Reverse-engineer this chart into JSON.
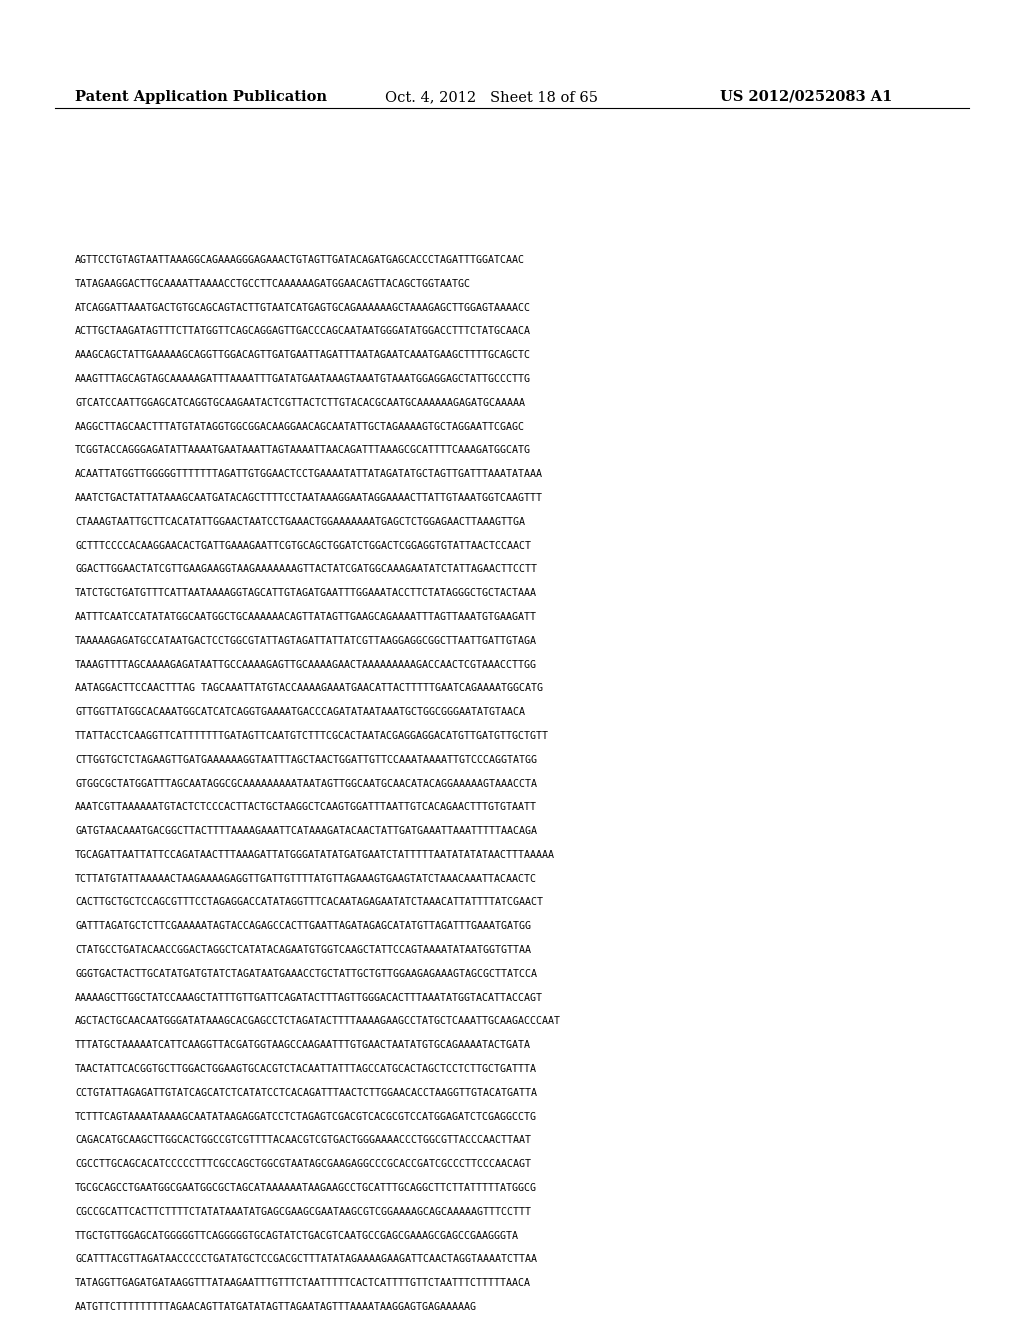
{
  "header_left": "Patent Application Publication",
  "header_mid": "Oct. 4, 2012   Sheet 18 of 65",
  "header_right": "US 2012/0252083 A1",
  "background_color": "#ffffff",
  "text_color": "#000000",
  "header_fontsize": 10.5,
  "body_fontsize": 7.2,
  "sequence_lines": [
    "AGTTCCTGTAGTAATTAAAGGCAGAAAGGGAGAAACTGTAGTTGATACAGATGAGCACCCTAGATTTGGATCAAC",
    "TATAGAAGGACTTGCAAAATTAAAACCTGCCTTCAAAAAAGATGGAACAGTTACAGCTGGTAATGC",
    "ATCAGGATTAAATGACTGTGCAGCAGTACTTGTAATCATGAGTGCAGAAAAAAGCTAAAGAGCTTGGAGTAAAACC",
    "ACTTGCTAAGATAGTTTCTTATGGTTCAGCAGGAGTTGACCCAGCAATAATGGGATATGGACCTTTCTATGCAACA",
    "AAAGCAGCTATTGAAAAAGCAGGTTGGACAGTTGATGAATTAGATTTAATAGAATCAAATGAAGCTTTTGCAGCTC",
    "AAAGTTTAGCAGTAGCAAAAAGATTTAAAATTTGATATGAATAAAGTAAATGTAAATGGAGGAGCTATTGCCCTTG",
    "GTCATCCAATTGGAGCATCAGGTGCAAGAATACTCGTTACTCTTGTACACGCAATGCAAAAAAGAGATGCAAAAA",
    "AAGGCTTAGCAACTTTATGTATAGGTGGCGGACAAGGAACAGCAATATTGCTAGAAAAGTGCTAGGAATTCGAGC",
    "TCGGTACCAGGGAGATATTAAAATGAATAAATTAGTAAAATTAACAGATTTAAAGCGCATTTTCAAAGATGGCATG",
    "ACAATTATGGTTGGGGGTTTTTTTAGATTGTGGAACTCCTGAAAATATTATAGATATGCTAGTTGATTTAAATATAAA",
    "AAATCTGACTATTATAAAGCAATGATACAGCTTTTCCTAATAAAGGAATAGGAAAACTTATTGTAAATGGTCAAGTTT",
    "CTAAAGTAATTGCTTCACATATTGGAACTAATCCTGAAACTGGAAAAAAATGAGCTCTGGAGAACTTAAAGTTGA",
    "GCTTTCCCCACAAGGAACACTGATTGAAAGAATTCGTGCAGCTGGATCTGGACTCGGAGGTGTATTAACTCCAACT",
    "GGACTTGGAACTATCGTTGAAGAAGGTAAGAAAAAAAGTTACTATCGATGGCAAAGAATATCTATTAGAACTTCCTT",
    "TATCTGCTGATGTTTCATTAATAAAAGGTAGCATTGTAGATGAATTTGGAAATACCTTCTATAGGGCTGCTACTAAA",
    "AATTTCAATCCATATATGGCAATGGCTGCAAAAAACAGTTATAGTTGAAGCAGAAAATTTAGTTAAATGTGAAGATT",
    "TAAAAAGAGATGCCATAATGACTCCTGGCGTATTAGTAGATTATTATCGTTAAGGAGGCGGCTTAATTGATTGTAGA",
    "TAAAGTTTTAGCAAAAGAGATAATTGCCAAAAGAGTTGCAAAAGAACTAAAAAAAAAGACCAACTCGTAAACCTTGG",
    "AATAGGACTTCCAACTTTAG TAGCAAATTATGTACCAAAAGAAATGAACATTACTTTTTGAATCAGAAAATGGCATG",
    "GTTGGTTATGGCACAAATGGCATCATCAGGTGAAAATGACCCAGATATAATAAATGCTGGCGGGAATATGTAACA",
    "TTATTACCTCAAGGTTCATTTTTTTGATAGTTCAATGTCTTTCGCACTAATACGAGGAGGACATGTTGATGTTGCTGTT",
    "CTTGGTGCTCTAGAAGTTGATGAAAAAAGGTAATTTAGCTAACTGGATTGTTCCAAATAAAATTGTCCCAGGTATGG",
    "GTGGCGCTATGGATTTAGCAATAGGCGCAAAAAAAAATAATAGTTGGCAATGCAACATACAGGAAAAAGTAAACCTA",
    "AAATCGTTAAAAAATGTACTCTCCCACTTACTGCTAAGGCTCAAGTGGATTTAATTGTCACAGAACTTTGTGTAATT",
    "GATGTAACAAATGACGGCTTACTTTTAAAAGAAATTCATAAAGATACAACTATTGATGAAATTAAATTTTTAACAGA",
    "TGCAGATTAATTATTCCAGATAACTTTAAAGATTATGGGATATATGATGAATCTATTTTTAATATATATAACTTTAAAAA",
    "TCTTATGTATTAAAAACTAAGAAAAGAGGTTGATTGTTTTATGTTAGAAAGTGAAGTATCTAAACAAATTACAACTC",
    "CACTTGCTGCTCCAGCGTTTCCTAGAGGACCATATAGGTTTCACAATAGAGAATATCTAAACATTATTTTATCGAACT",
    "GATTTAGATGCTCTTCGAAAAATAGTACCAGAGCCACTTGAATTAGATAGAGCATATGTTAGATTTGAAATGATGG",
    "CTATGCCTGATACAACCGGACTAGGCTCATATACAGAATGTGGTCAAGCTATTCCAGTAAAATATAATGGTGTTAA",
    "GGGTGACTACTTGCATATGATGTATCTAGATAATGAAACCTGCTATTGCTGTTGGAAGAGAAAGTAGCGCTTATCCA",
    "AAAAAGCTTGGCTATCCAAAGCTATTTGTTGATTCAGATACTTTAGTTGGGACACTTTAAATATGGTACATTACCAGT",
    "AGCTACTGCAACAATGGGATATAAAGCACGAGCCTCTAGATACTTTTAAAAGAAGCCTATGCTCAAATTGCAAGACCCAAT",
    "TTTATGCTAAAAATCATTCAAGGTTACGATGGTAAGCCAAGAATTTGTGAACTAATATGTGCAGAAAATACTGATA",
    "TAACTATTCACGGTGCTTGGACTGGAAGTGCACGTCTACAATTATTTAGCCATGCACTAGCTCCTCTTGCTGATTTA",
    "CCTGTATTAGAGATTGTATCAGCATCTCATATCCTCACAGATTTAACTCTTGGAACACCTAAGGTTGTACATGATTA",
    "TCTTTCAGTAAAATAAAAGCAATATAAGAGGATCCTCTAGAGTCGACGTCACGCGTCCATGGAGATCTCGAGGCCTG",
    "CAGACATGCAAGCTTGGCACTGGCCGTCGTTTTACAACGTCGTGACTGGGAAAACCCTGGCGTTACCCAACTTAAT",
    "CGCCTTGCAGCACATCCCCCTTTCGCCAGCTGGCGTAATAGCGAAGAGGCCCGCACCGATCGCCCTTCCCAACAGT",
    "TGCGCAGCCTGAATGGCGAATGGCGCTAGCATAAAAAATAAGAAGCCTGCATTTGCAGGCTTCTTATTTTTATGGCG",
    "CGCCGCATTCACTTCTTTTCTATATAAATATGAGCGAAGCGAATAAGCGTCGGAAAAGCAGCAAAAAGTTTCCTTT",
    "TTGCTGTTGGAGCATGGGGGTTCAGGGGGTGCAGTATCTGACGTCAATGCCGAGCGAAAGCGAGCCGAAGGGTA",
    "GCATTTACGTTAGATAACCCCCTGATATGCTCCGACGCTTTATATAGAAAAGAAGATTCAACTAGGTAAAATCTTAA",
    "TATAGGTTGAGATGATAAGGTTTATAAGAATTTGTTTCTAATTTTTCACTCATTTTGTTCTAATTTCTTTTTAACA",
    "AATGTTCTTTTTTTTTAGAACAGTTATGATATAGTTAGAATAGTTTAAAATAAGGAGTGAGAAAAAG"
  ]
}
